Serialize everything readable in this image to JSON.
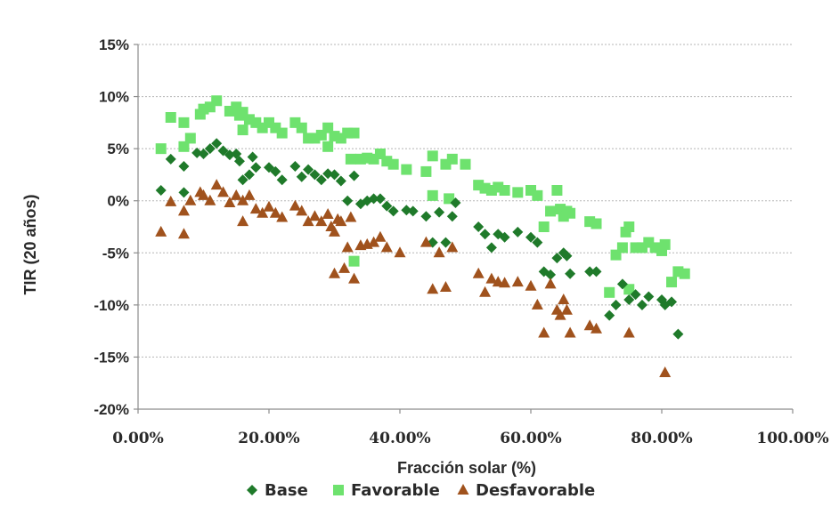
{
  "chart_data": {
    "type": "scatter",
    "xlabel": "Fracción solar (%)",
    "ylabel": "TIR (20 años)",
    "xlim": [
      0,
      100
    ],
    "ylim": [
      -20,
      15
    ],
    "x_ticks": [
      0,
      20,
      40,
      60,
      80,
      100
    ],
    "x_tick_labels": [
      "0.00%",
      "20.00%",
      "40.00%",
      "60.00%",
      "80.00%",
      "100.00%"
    ],
    "y_ticks": [
      15,
      10,
      5,
      0,
      -5,
      -10,
      -15,
      -20
    ],
    "y_tick_labels": [
      "15%",
      "10%",
      "5%",
      "0%",
      "-5%",
      "-10%",
      "-15%",
      "-20%"
    ],
    "grid": "horizontal dashed",
    "legend_position": "bottom",
    "series": [
      {
        "name": "Base",
        "marker": "diamond",
        "color": "#1f7a2a",
        "points": [
          [
            3.5,
            1.0
          ],
          [
            5,
            4.0
          ],
          [
            7,
            3.3
          ],
          [
            7,
            0.8
          ],
          [
            9,
            4.6
          ],
          [
            10,
            4.5
          ],
          [
            11,
            5.0
          ],
          [
            12,
            5.5
          ],
          [
            13,
            4.8
          ],
          [
            14,
            4.4
          ],
          [
            15,
            4.5
          ],
          [
            15.5,
            3.8
          ],
          [
            16,
            2.0
          ],
          [
            17,
            2.5
          ],
          [
            17.5,
            4.2
          ],
          [
            18,
            3.2
          ],
          [
            20,
            3.2
          ],
          [
            21,
            2.8
          ],
          [
            22,
            2.0
          ],
          [
            24,
            3.3
          ],
          [
            25,
            2.3
          ],
          [
            26,
            3.0
          ],
          [
            27,
            2.5
          ],
          [
            28,
            2.0
          ],
          [
            29,
            2.6
          ],
          [
            30,
            2.5
          ],
          [
            31,
            1.9
          ],
          [
            32,
            0.0
          ],
          [
            33,
            2.4
          ],
          [
            34,
            -0.3
          ],
          [
            35,
            0.0
          ],
          [
            36,
            0.2
          ],
          [
            37,
            0.2
          ],
          [
            38,
            -0.5
          ],
          [
            39,
            -1.0
          ],
          [
            41,
            -0.9
          ],
          [
            42,
            -1.0
          ],
          [
            44,
            -1.5
          ],
          [
            45,
            -4.0
          ],
          [
            46,
            -1.1
          ],
          [
            47,
            -4.0
          ],
          [
            48,
            -1.5
          ],
          [
            48.5,
            -0.2
          ],
          [
            52,
            -2.5
          ],
          [
            53,
            -3.2
          ],
          [
            54,
            -4.5
          ],
          [
            55,
            -3.2
          ],
          [
            56,
            -3.5
          ],
          [
            58,
            -3.0
          ],
          [
            60,
            -3.5
          ],
          [
            61,
            -4.0
          ],
          [
            62,
            -6.8
          ],
          [
            63,
            -7.1
          ],
          [
            64,
            -5.5
          ],
          [
            65,
            -5.0
          ],
          [
            65.5,
            -5.3
          ],
          [
            66,
            -7.0
          ],
          [
            69,
            -6.8
          ],
          [
            70,
            -6.8
          ],
          [
            72,
            -11.0
          ],
          [
            73,
            -10.0
          ],
          [
            74,
            -8.0
          ],
          [
            75,
            -9.5
          ],
          [
            76,
            -9.0
          ],
          [
            77,
            -10.0
          ],
          [
            78,
            -9.2
          ],
          [
            80,
            -9.5
          ],
          [
            80.5,
            -10.0
          ],
          [
            81.5,
            -9.7
          ],
          [
            82.5,
            -12.8
          ]
        ]
      },
      {
        "name": "Favorable",
        "marker": "square",
        "color": "#6ee26e",
        "points": [
          [
            3.5,
            5.0
          ],
          [
            5,
            8.0
          ],
          [
            7,
            7.5
          ],
          [
            7,
            5.2
          ],
          [
            8,
            6.0
          ],
          [
            9.5,
            8.3
          ],
          [
            10,
            8.8
          ],
          [
            11,
            9.0
          ],
          [
            12,
            9.6
          ],
          [
            14,
            8.6
          ],
          [
            15,
            9.0
          ],
          [
            15.5,
            8.2
          ],
          [
            16,
            8.5
          ],
          [
            16,
            6.8
          ],
          [
            17,
            7.8
          ],
          [
            18,
            7.5
          ],
          [
            19,
            7.0
          ],
          [
            20,
            7.5
          ],
          [
            21,
            7.0
          ],
          [
            22,
            6.5
          ],
          [
            24,
            7.5
          ],
          [
            25,
            7.0
          ],
          [
            26,
            6.0
          ],
          [
            27,
            6.0
          ],
          [
            28,
            6.3
          ],
          [
            29,
            7.0
          ],
          [
            29,
            5.2
          ],
          [
            30,
            6.2
          ],
          [
            31,
            6.0
          ],
          [
            32,
            6.5
          ],
          [
            32.5,
            4.0
          ],
          [
            33,
            6.5
          ],
          [
            33,
            -5.8
          ],
          [
            34,
            4.0
          ],
          [
            35,
            4.1
          ],
          [
            36,
            4.0
          ],
          [
            37,
            4.5
          ],
          [
            38,
            3.8
          ],
          [
            39,
            3.5
          ],
          [
            41,
            3.0
          ],
          [
            44,
            2.8
          ],
          [
            45,
            4.3
          ],
          [
            45,
            0.5
          ],
          [
            47,
            3.5
          ],
          [
            47.5,
            0.2
          ],
          [
            48,
            4.0
          ],
          [
            50,
            3.5
          ],
          [
            52,
            1.5
          ],
          [
            53,
            1.2
          ],
          [
            54,
            1.0
          ],
          [
            55,
            1.3
          ],
          [
            56,
            1.0
          ],
          [
            58,
            0.8
          ],
          [
            60,
            1.0
          ],
          [
            61,
            0.5
          ],
          [
            62,
            -2.5
          ],
          [
            63,
            -1.0
          ],
          [
            64,
            1.0
          ],
          [
            64.5,
            -0.8
          ],
          [
            65,
            -1.5
          ],
          [
            65.5,
            -1.0
          ],
          [
            66,
            -1.2
          ],
          [
            69,
            -2.0
          ],
          [
            70,
            -2.2
          ],
          [
            72,
            -8.8
          ],
          [
            73,
            -5.2
          ],
          [
            74,
            -4.5
          ],
          [
            74.5,
            -3.0
          ],
          [
            75,
            -2.5
          ],
          [
            75,
            -8.5
          ],
          [
            76,
            -4.5
          ],
          [
            77,
            -4.5
          ],
          [
            78,
            -4.0
          ],
          [
            79,
            -4.5
          ],
          [
            80,
            -4.8
          ],
          [
            80.5,
            -4.2
          ],
          [
            81.5,
            -7.8
          ],
          [
            82.5,
            -6.8
          ],
          [
            83.5,
            -7.0
          ]
        ]
      },
      {
        "name": "Desfavorable",
        "marker": "triangle",
        "color": "#a0521d",
        "points": [
          [
            3.5,
            -3.0
          ],
          [
            5,
            -0.1
          ],
          [
            7,
            -3.2
          ],
          [
            7,
            -1.0
          ],
          [
            8,
            0.0
          ],
          [
            9.5,
            0.8
          ],
          [
            10,
            0.5
          ],
          [
            11,
            0.0
          ],
          [
            12,
            1.5
          ],
          [
            13,
            0.8
          ],
          [
            14,
            -0.2
          ],
          [
            15,
            0.5
          ],
          [
            16,
            0.0
          ],
          [
            16,
            -2.0
          ],
          [
            17,
            0.5
          ],
          [
            18,
            -0.8
          ],
          [
            19,
            -1.2
          ],
          [
            20,
            -0.6
          ],
          [
            21,
            -1.2
          ],
          [
            22,
            -1.6
          ],
          [
            24,
            -0.5
          ],
          [
            25,
            -1.0
          ],
          [
            26,
            -2.0
          ],
          [
            27,
            -1.5
          ],
          [
            28,
            -2.0
          ],
          [
            29,
            -1.3
          ],
          [
            29.5,
            -2.5
          ],
          [
            30,
            -3.0
          ],
          [
            30.5,
            -1.8
          ],
          [
            31,
            -2.0
          ],
          [
            32,
            -4.5
          ],
          [
            32.5,
            -1.6
          ],
          [
            33,
            -7.5
          ],
          [
            30,
            -7.0
          ],
          [
            31.5,
            -6.5
          ],
          [
            34,
            -4.3
          ],
          [
            35,
            -4.2
          ],
          [
            36,
            -4.0
          ],
          [
            37,
            -3.5
          ],
          [
            38,
            -4.5
          ],
          [
            40,
            -5.0
          ],
          [
            44,
            -4.0
          ],
          [
            45,
            -8.5
          ],
          [
            46,
            -5.0
          ],
          [
            47,
            -8.3
          ],
          [
            48,
            -4.5
          ],
          [
            52,
            -7.0
          ],
          [
            53,
            -8.8
          ],
          [
            54,
            -7.5
          ],
          [
            55,
            -7.8
          ],
          [
            56,
            -7.9
          ],
          [
            58,
            -7.8
          ],
          [
            60,
            -8.2
          ],
          [
            61,
            -10.0
          ],
          [
            62,
            -12.7
          ],
          [
            63,
            -8.0
          ],
          [
            64,
            -10.5
          ],
          [
            64.5,
            -11.0
          ],
          [
            65,
            -9.5
          ],
          [
            65.5,
            -10.5
          ],
          [
            66,
            -12.7
          ],
          [
            69,
            -12.0
          ],
          [
            70,
            -12.3
          ],
          [
            75,
            -12.7
          ],
          [
            80.5,
            -16.5
          ]
        ]
      }
    ]
  }
}
